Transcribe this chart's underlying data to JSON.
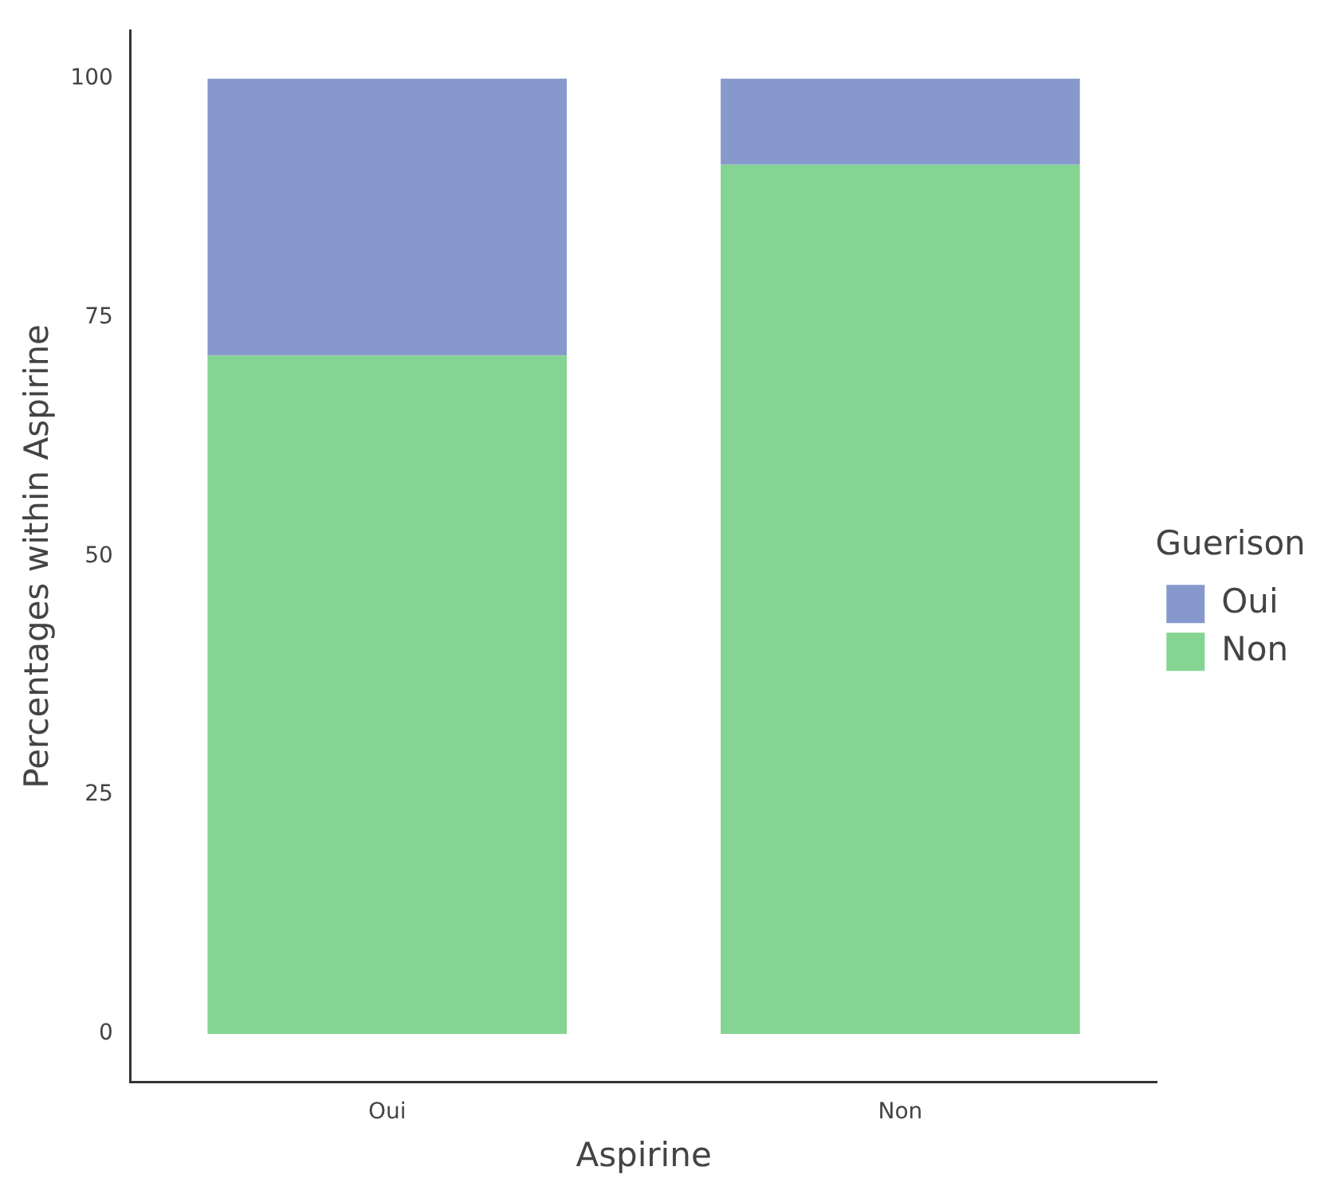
{
  "chart_data": {
    "type": "bar",
    "xlabel": "Aspirine",
    "ylabel": "Percentages within Aspirine",
    "legend_title": "Guerison",
    "categories": [
      "Oui",
      "Non"
    ],
    "stacked": true,
    "series": [
      {
        "name": "Non",
        "color": "#84d492",
        "values": [
          71,
          91
        ]
      },
      {
        "name": "Oui",
        "color": "#8799cc",
        "values": [
          29,
          9
        ]
      }
    ],
    "ylim": [
      -5,
      105
    ],
    "yticks": [
      0,
      25,
      50,
      75,
      100
    ],
    "grid": false,
    "legend": "right"
  }
}
